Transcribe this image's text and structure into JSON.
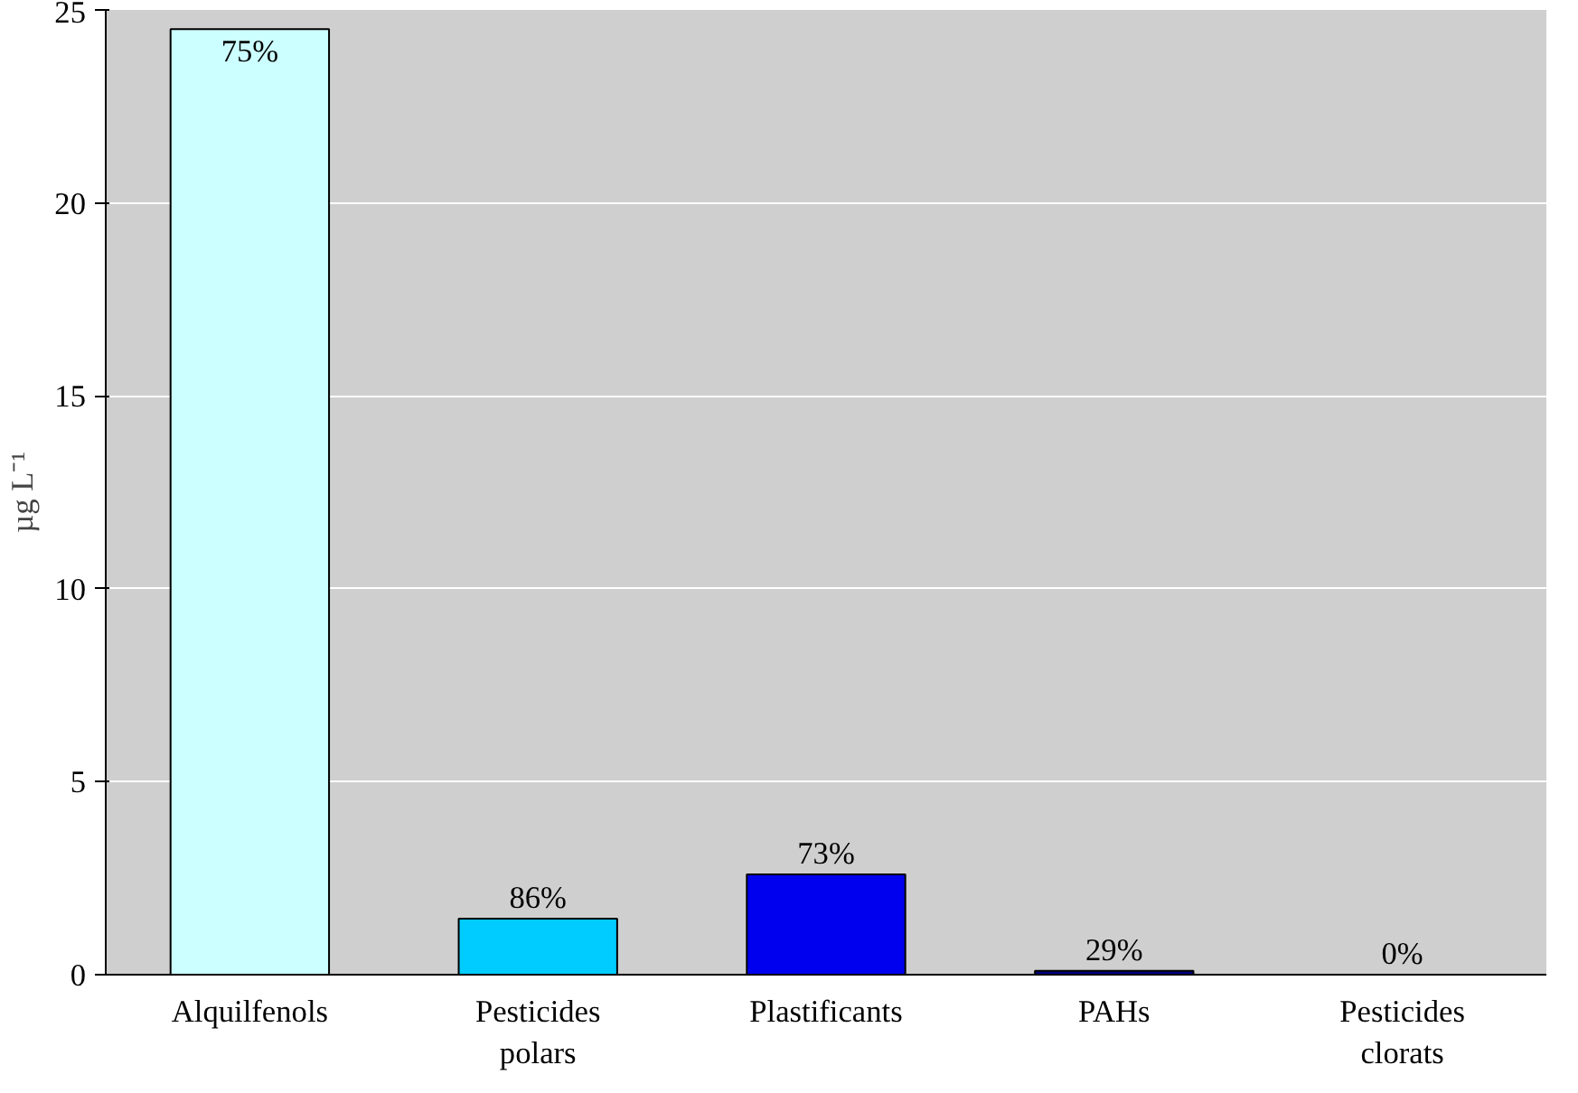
{
  "chart_data": {
    "type": "bar",
    "ylabel": "µg L⁻¹",
    "categories": [
      "Alquilfenols",
      "Pesticides\npolars",
      "Plastificants",
      "PAHs",
      "Pesticides\nclorats"
    ],
    "values": [
      24.5,
      1.45,
      2.6,
      0.1,
      0
    ],
    "colors": [
      "#ccffff",
      "#00ccff",
      "#0000ee",
      "#000080",
      "#000000"
    ],
    "annotations": [
      {
        "text": "75%",
        "x": "Alquilfenols",
        "y": 24.5
      },
      {
        "text": "86%",
        "x": "Pesticides\npolars",
        "y": 1.45
      },
      {
        "text": "73%",
        "x": "Plastificants",
        "y": 2.6
      },
      {
        "text": "29%",
        "x": "PAHs",
        "y": 0.1
      },
      {
        "text": "0%",
        "x": "Pesticides\nclorats",
        "y": 0
      }
    ],
    "ylim": [
      0,
      25
    ],
    "yticks": [
      0,
      5,
      10,
      15,
      20,
      25
    ],
    "grid": "y"
  }
}
